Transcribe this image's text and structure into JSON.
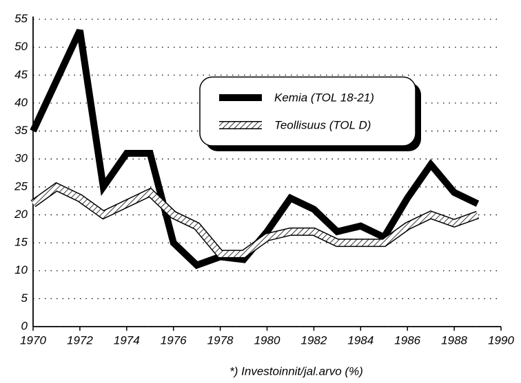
{
  "chart_data": {
    "type": "line",
    "x_label": "*) Investoinnit/jal.arvo (%)",
    "x": [
      1970,
      1971,
      1972,
      1973,
      1974,
      1975,
      1976,
      1977,
      1978,
      1979,
      1980,
      1981,
      1982,
      1983,
      1984,
      1985,
      1986,
      1987,
      1988,
      1989
    ],
    "series": [
      {
        "name": "Kemia (TOL 18-21)",
        "color": "#000000",
        "values": [
          35,
          44,
          53,
          25,
          31,
          31,
          15,
          11,
          12.5,
          12,
          17,
          23,
          21,
          17,
          18,
          16,
          23,
          29,
          24,
          22
        ]
      },
      {
        "name": "Teollisuus (TOL D)",
        "color": "#000000",
        "values": [
          22,
          25,
          23,
          20,
          22,
          24,
          20,
          18,
          13,
          13,
          16,
          17,
          17,
          15,
          15,
          15,
          18,
          20,
          18.5,
          20
        ]
      }
    ],
    "xlim": [
      1970,
      1990
    ],
    "xticks": [
      1970,
      1972,
      1974,
      1976,
      1978,
      1980,
      1982,
      1984,
      1986,
      1988,
      1990
    ],
    "ylim": [
      0,
      55
    ],
    "yticks": [
      0,
      5,
      10,
      15,
      20,
      25,
      30,
      35,
      40,
      45,
      50,
      55
    ],
    "grid": true,
    "legend": "center"
  }
}
